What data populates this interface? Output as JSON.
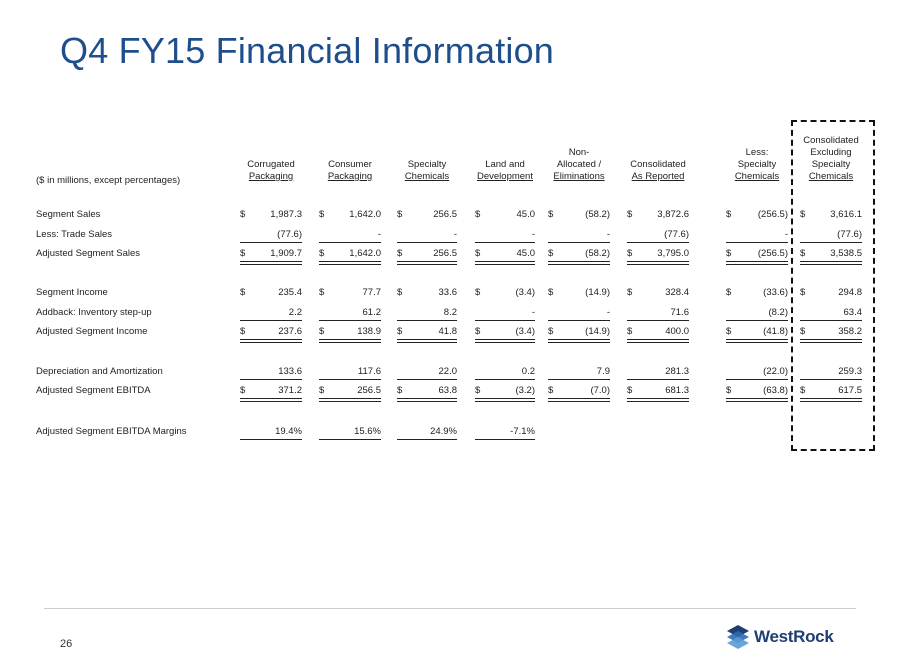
{
  "title": "Q4 FY15 Financial Information",
  "table": {
    "units_label": "($ in millions, except percentages)",
    "columns": [
      {
        "header": [
          "Corrugated",
          "Packaging"
        ]
      },
      {
        "header": [
          "Consumer",
          "Packaging"
        ]
      },
      {
        "header": [
          "Specialty",
          "Chemicals"
        ]
      },
      {
        "header": [
          "Land and",
          "Development"
        ]
      },
      {
        "header": [
          "Non-",
          "Allocated /",
          "Eliminations"
        ]
      },
      {
        "header": [
          "Consolidated",
          "As Reported"
        ]
      },
      {
        "header": [
          "Less:",
          "Specialty",
          "Chemicals"
        ]
      },
      {
        "header": [
          "Consolidated",
          "Excluding",
          "Specialty",
          "Chemicals"
        ]
      }
    ],
    "rows": [
      {
        "label": "Segment Sales",
        "cells": [
          [
            "$",
            "1,987.3"
          ],
          [
            "$",
            "1,642.0"
          ],
          [
            "$",
            "256.5"
          ],
          [
            "$",
            "45.0"
          ],
          [
            "$",
            "(58.2)"
          ],
          [
            "$",
            "3,872.6"
          ],
          [
            "$",
            "(256.5)"
          ],
          [
            "$",
            "3,616.1"
          ]
        ]
      },
      {
        "label": "Less: Trade Sales",
        "cells": [
          [
            "",
            "(77.6)"
          ],
          [
            "",
            "-"
          ],
          [
            "",
            "-"
          ],
          [
            "",
            "-"
          ],
          [
            "",
            "-"
          ],
          [
            "",
            "(77.6)"
          ],
          [
            "",
            "-"
          ],
          [
            "",
            "(77.6)"
          ]
        ]
      },
      {
        "label": "Adjusted Segment Sales",
        "cells": [
          [
            "$",
            "1,909.7"
          ],
          [
            "$",
            "1,642.0"
          ],
          [
            "$",
            "256.5"
          ],
          [
            "$",
            "45.0"
          ],
          [
            "$",
            "(58.2)"
          ],
          [
            "$",
            "3,795.0"
          ],
          [
            "$",
            "(256.5)"
          ],
          [
            "$",
            "3,538.5"
          ]
        ]
      },
      {
        "label": "Segment Income",
        "cells": [
          [
            "$",
            "235.4"
          ],
          [
            "$",
            "77.7"
          ],
          [
            "$",
            "33.6"
          ],
          [
            "$",
            "(3.4)"
          ],
          [
            "$",
            "(14.9)"
          ],
          [
            "$",
            "328.4"
          ],
          [
            "$",
            "(33.6)"
          ],
          [
            "$",
            "294.8"
          ]
        ]
      },
      {
        "label": "Addback: Inventory step-up",
        "cells": [
          [
            "",
            "2.2"
          ],
          [
            "",
            "61.2"
          ],
          [
            "",
            "8.2"
          ],
          [
            "",
            "-"
          ],
          [
            "",
            "-"
          ],
          [
            "",
            "71.6"
          ],
          [
            "",
            "(8.2)"
          ],
          [
            "",
            "63.4"
          ]
        ]
      },
      {
        "label": "Adjusted Segment Income",
        "cells": [
          [
            "$",
            "237.6"
          ],
          [
            "$",
            "138.9"
          ],
          [
            "$",
            "41.8"
          ],
          [
            "$",
            "(3.4)"
          ],
          [
            "$",
            "(14.9)"
          ],
          [
            "$",
            "400.0"
          ],
          [
            "$",
            "(41.8)"
          ],
          [
            "$",
            "358.2"
          ]
        ]
      },
      {
        "label": "Depreciation and Amortization",
        "cells": [
          [
            "",
            "133.6"
          ],
          [
            "",
            "117.6"
          ],
          [
            "",
            "22.0"
          ],
          [
            "",
            "0.2"
          ],
          [
            "",
            "7.9"
          ],
          [
            "",
            "281.3"
          ],
          [
            "",
            "(22.0)"
          ],
          [
            "",
            "259.3"
          ]
        ]
      },
      {
        "label": "Adjusted Segment EBITDA",
        "cells": [
          [
            "$",
            "371.2"
          ],
          [
            "$",
            "256.5"
          ],
          [
            "$",
            "63.8"
          ],
          [
            "$",
            "(3.2)"
          ],
          [
            "$",
            "(7.0)"
          ],
          [
            "$",
            "681.3"
          ],
          [
            "$",
            "(63.8)"
          ],
          [
            "$",
            "617.5"
          ]
        ]
      },
      {
        "label": "Adjusted Segment EBITDA Margins",
        "cells": [
          [
            "",
            "19.4%"
          ],
          [
            "",
            "15.6%"
          ],
          [
            "",
            "24.9%"
          ],
          [
            "",
            "-7.1%"
          ]
        ]
      }
    ]
  },
  "footer": {
    "page_number": "26",
    "logo_text": "WestRock"
  }
}
